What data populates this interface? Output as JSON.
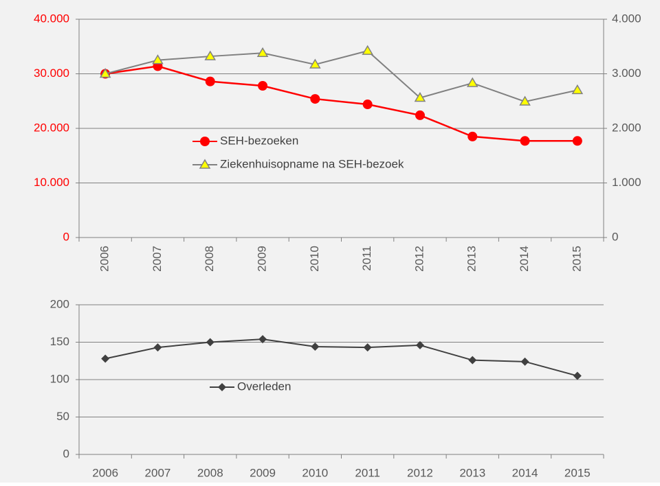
{
  "chart_data": [
    {
      "type": "line",
      "categories": [
        "2006",
        "2007",
        "2008",
        "2009",
        "2010",
        "2011",
        "2012",
        "2013",
        "2014",
        "2015"
      ],
      "series": [
        {
          "name": "SEH-bezoeken",
          "color": "#ff0000",
          "marker": "circle",
          "values": [
            30000,
            31400,
            28600,
            27800,
            25400,
            24400,
            22400,
            18500,
            17700,
            17700
          ]
        },
        {
          "name": "Ziekenhuisopname na SEH-bezoek",
          "color": "#808080",
          "marker": "triangle",
          "axis": "y2",
          "values": [
            3000,
            3250,
            3320,
            3380,
            3170,
            3420,
            2560,
            2830,
            2490,
            2700
          ]
        }
      ],
      "ylim": [
        0,
        40000
      ],
      "yticks": [
        {
          "value": 0,
          "label": "0"
        },
        {
          "value": 10000,
          "label": "10.000"
        },
        {
          "value": 20000,
          "label": "20.000"
        },
        {
          "value": 30000,
          "label": "30.000"
        },
        {
          "value": 40000,
          "label": "40.000"
        }
      ],
      "y2lim": [
        0,
        4000
      ],
      "y2ticks": [
        {
          "value": 0,
          "label": "0"
        },
        {
          "value": 1000,
          "label": "1.000"
        },
        {
          "value": 2000,
          "label": "2.000"
        },
        {
          "value": 3000,
          "label": "3.000"
        },
        {
          "value": 4000,
          "label": "4.000"
        }
      ],
      "grid": true,
      "rotated_x_labels": true
    },
    {
      "type": "line",
      "categories": [
        "2006",
        "2007",
        "2008",
        "2009",
        "2010",
        "2011",
        "2012",
        "2013",
        "2014",
        "2015"
      ],
      "series": [
        {
          "name": "Overleden",
          "color": "#404040",
          "marker": "diamond",
          "values": [
            128,
            143,
            150,
            154,
            144,
            143,
            146,
            126,
            124,
            105
          ]
        }
      ],
      "ylim": [
        0,
        200
      ],
      "yticks": [
        0,
        50,
        100,
        150,
        200
      ],
      "grid": true
    }
  ]
}
